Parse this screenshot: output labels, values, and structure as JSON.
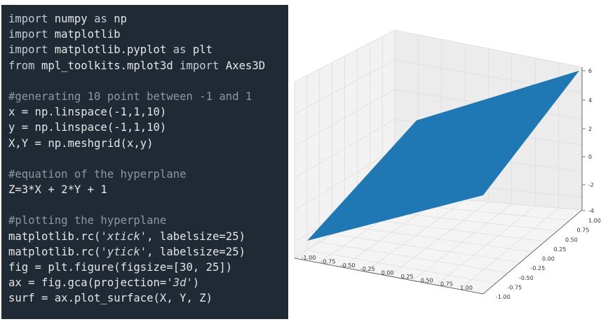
{
  "code": {
    "lines": [
      [
        {
          "t": "import",
          "c": "kw"
        },
        {
          "t": " numpy "
        },
        {
          "t": "as",
          "c": "kw"
        },
        {
          "t": " np"
        }
      ],
      [
        {
          "t": "import",
          "c": "kw"
        },
        {
          "t": " matplotlib"
        }
      ],
      [
        {
          "t": "import",
          "c": "kw"
        },
        {
          "t": " matplotlib.pyplot "
        },
        {
          "t": "as",
          "c": "kw"
        },
        {
          "t": " plt"
        }
      ],
      [
        {
          "t": "from",
          "c": "kw"
        },
        {
          "t": " mpl_toolkits.mplot3d "
        },
        {
          "t": "import",
          "c": "kw"
        },
        {
          "t": " Axes3D"
        }
      ],
      [],
      [
        {
          "t": "#generating 10 point between -1 and 1",
          "c": "cm"
        }
      ],
      [
        {
          "t": "x = np.linspace(-1,1,10)"
        }
      ],
      [
        {
          "t": "y = np.linspace(-1,1,10)"
        }
      ],
      [
        {
          "t": "X,Y = np.meshgrid(x,y)"
        }
      ],
      [],
      [
        {
          "t": "#equation of the hyperplane",
          "c": "cm"
        }
      ],
      [
        {
          "t": "Z=3*X + 2*Y + 1"
        }
      ],
      [],
      [
        {
          "t": "#plotting the hyperplane",
          "c": "cm"
        }
      ],
      [
        {
          "t": "matplotlib.rc("
        },
        {
          "t": "'xtick'",
          "c": "st"
        },
        {
          "t": ", labelsize=25)"
        }
      ],
      [
        {
          "t": "matplotlib.rc("
        },
        {
          "t": "'ytick'",
          "c": "st"
        },
        {
          "t": ", labelsize=25)"
        }
      ],
      [
        {
          "t": "fig = plt.figure(figsize=[30, 25])"
        }
      ],
      [
        {
          "t": "ax = fig.gca(projection="
        },
        {
          "t": "'3d'",
          "c": "st"
        },
        {
          "t": ")"
        }
      ],
      [
        {
          "t": "surf = ax.plot_surface(X, Y, Z)"
        }
      ]
    ]
  },
  "plot": {
    "surface_color": "#1f77b4",
    "x_ticks": [
      "-1.00",
      "-0.75",
      "-0.50",
      "-0.25",
      "0.00",
      "0.25",
      "0.50",
      "0.75",
      "1.00"
    ],
    "y_ticks": [
      "-1.00",
      "-0.75",
      "-0.50",
      "-0.25",
      "0.00",
      "0.25",
      "0.50",
      "0.75",
      "1.00"
    ],
    "z_ticks": [
      "-4",
      "-2",
      "0",
      "2",
      "4",
      "6"
    ]
  }
}
